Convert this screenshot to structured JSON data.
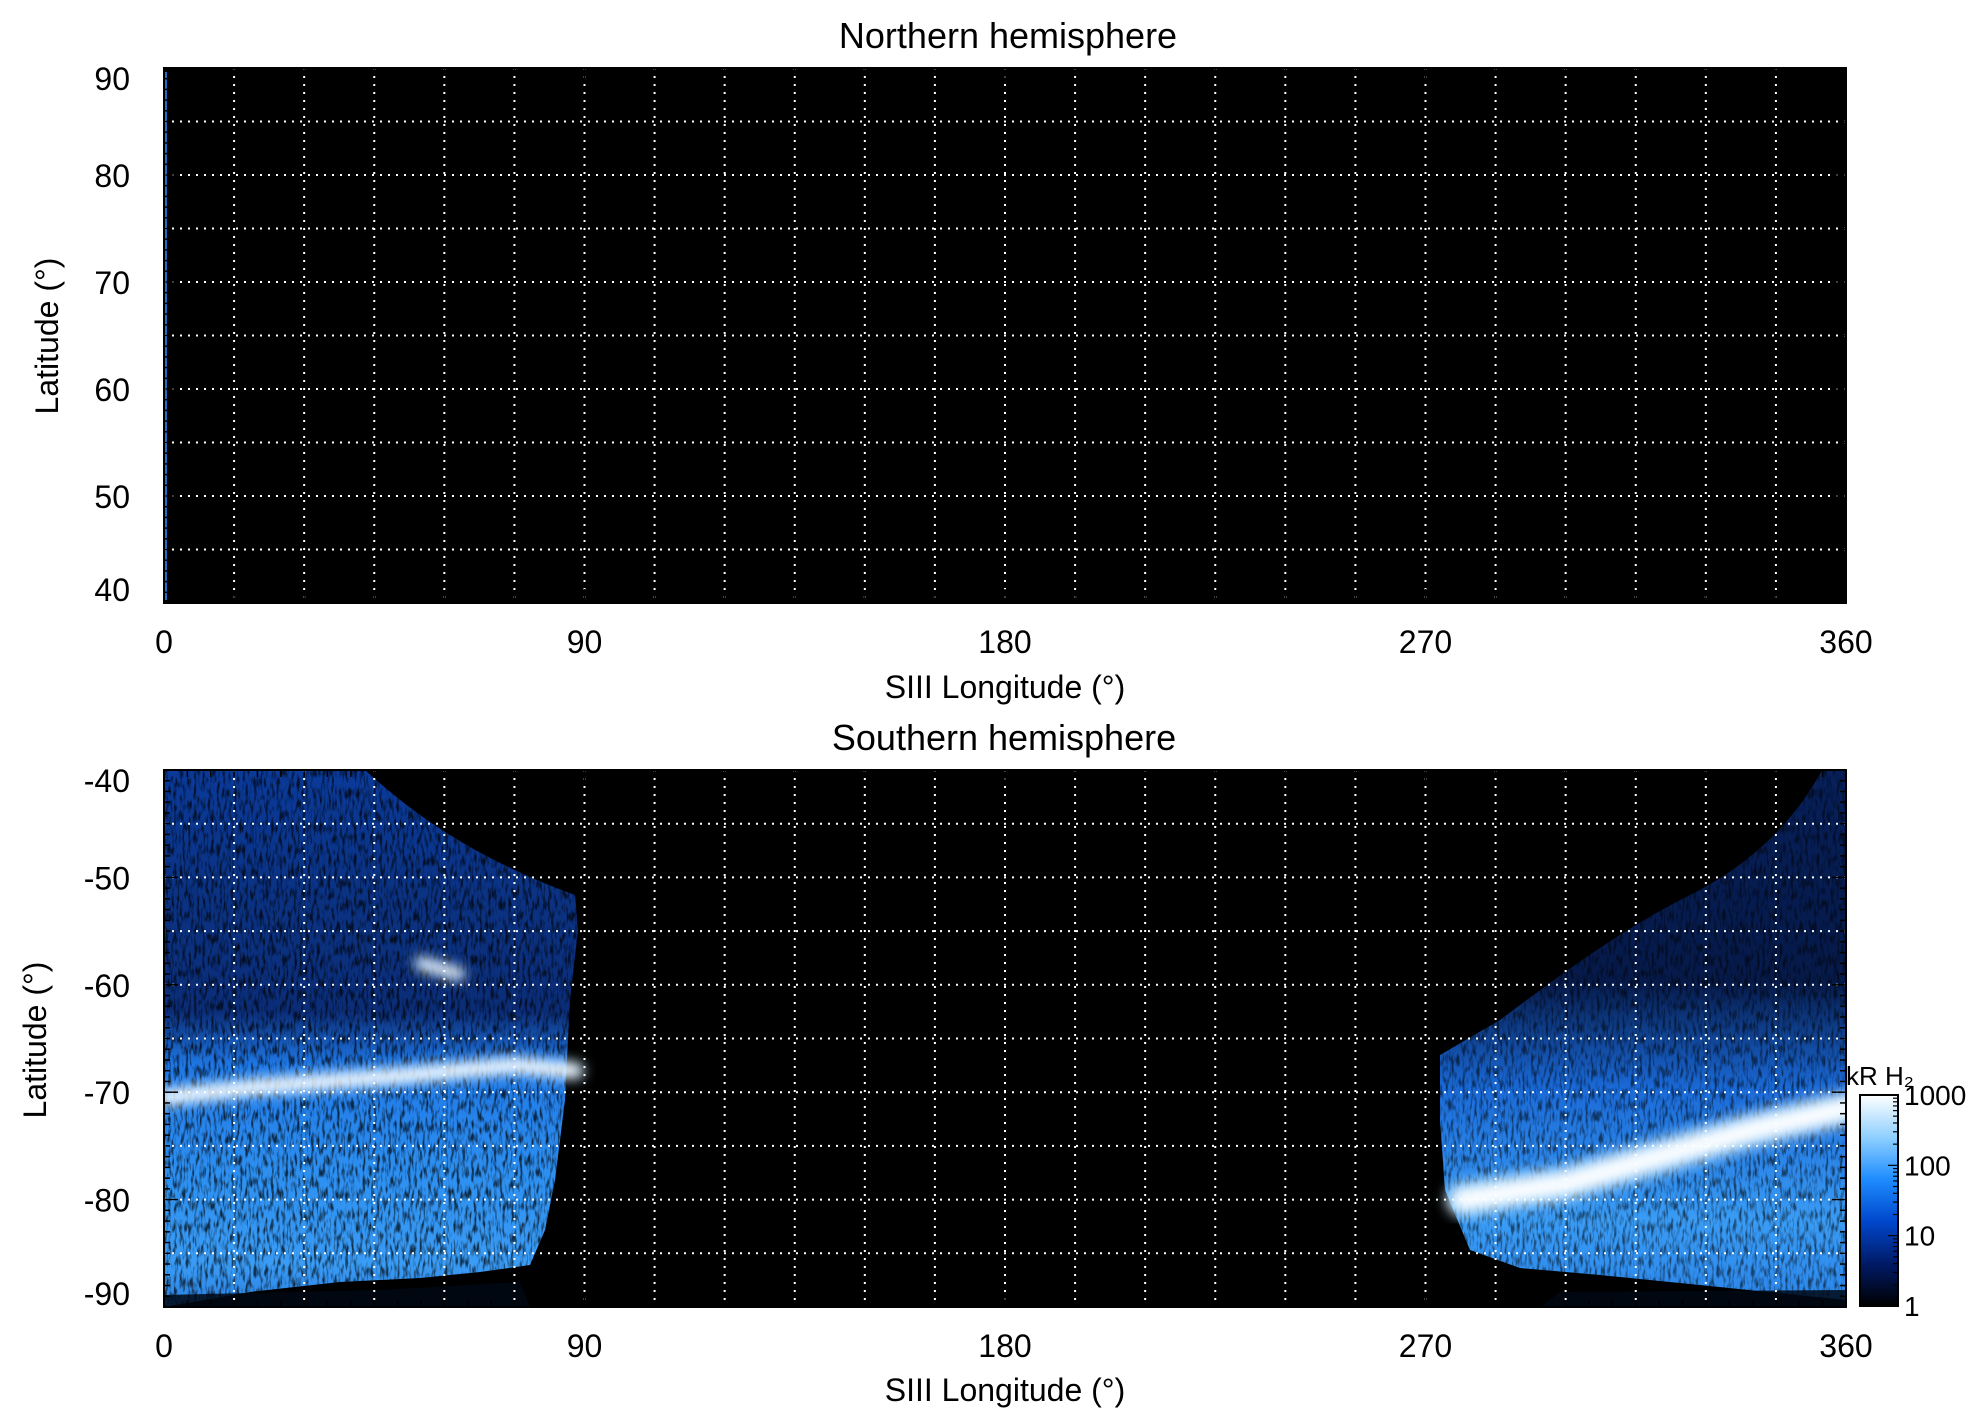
{
  "chart_data": [
    {
      "type": "heatmap",
      "title": "Northern hemisphere",
      "xlabel": "SIII Longitude (°)",
      "ylabel": "Latitude (°)",
      "xlim": [
        0,
        360
      ],
      "ylim": [
        40,
        90
      ],
      "xticks": [
        0,
        90,
        180,
        270,
        360
      ],
      "yticks": [
        40,
        50,
        60,
        70,
        80,
        90
      ],
      "grid": true,
      "grid_x_step": 15,
      "grid_y_step": 5,
      "background": "#000000",
      "emission": [
        {
          "lon": [
            0,
            0.8
          ],
          "lat": [
            40,
            90
          ],
          "level": "faint"
        }
      ]
    },
    {
      "type": "heatmap",
      "title": "Southern hemisphere",
      "xlabel": "SIII Longitude (°)",
      "ylabel": "Latitude (°)",
      "xlim": [
        0,
        360
      ],
      "ylim": [
        -90,
        -40
      ],
      "xticks": [
        0,
        90,
        180,
        270,
        360
      ],
      "yticks": [
        -90,
        -80,
        -70,
        -60,
        -50,
        -40
      ],
      "grid": true,
      "grid_x_step": 15,
      "grid_y_step": 5,
      "background": "#000000",
      "coverage": [
        {
          "name": "west",
          "lon": [
            0,
            90
          ]
        },
        {
          "name": "east",
          "lon": [
            272,
            360
          ]
        }
      ],
      "bright_features": [
        {
          "desc": "main oval arc",
          "points": [
            [
              0,
              -70.5
            ],
            [
              20,
              -69.5
            ],
            [
              50,
              -68.5
            ],
            [
              75,
              -67.5
            ],
            [
              88,
              -68
            ]
          ],
          "intensity_kR": 1000
        },
        {
          "desc": "spot",
          "points": [
            [
              55,
              -58
            ],
            [
              63,
              -59
            ]
          ],
          "intensity_kR": 1000
        },
        {
          "desc": "main oval arc east",
          "points": [
            [
              278,
              -80
            ],
            [
              300,
              -78.5
            ],
            [
              320,
              -76
            ],
            [
              340,
              -73.5
            ],
            [
              360,
              -71.5
            ]
          ],
          "intensity_kR": 1000
        }
      ],
      "colorbar": {
        "label": "kR H₂",
        "scale": "log",
        "range": [
          1,
          1000
        ],
        "ticks": [
          1,
          10,
          100,
          1000
        ],
        "colors": [
          "#000000",
          "#001a66",
          "#0047cc",
          "#1e8cff",
          "#8fd0ff",
          "#ffffff"
        ]
      }
    }
  ]
}
